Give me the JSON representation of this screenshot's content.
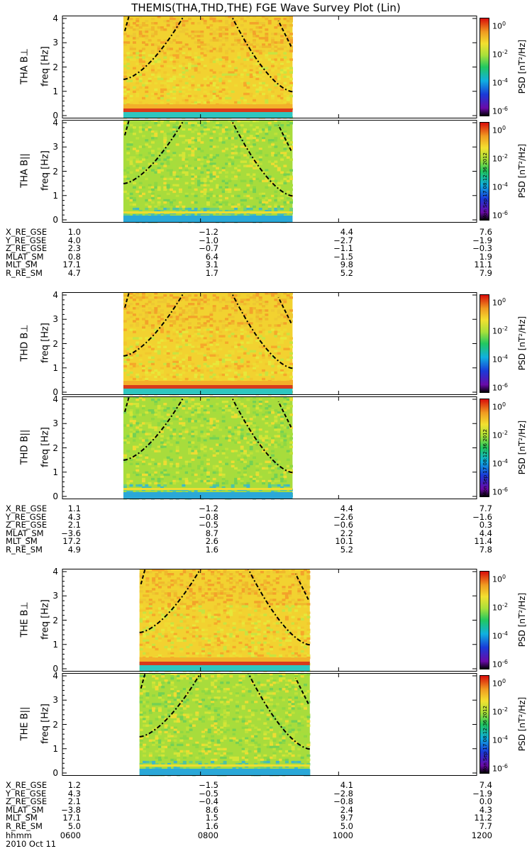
{
  "title": "THEMIS(THA,THD,THE) FGE Wave Survey Plot (Lin)",
  "freq_label": "freq [Hz]",
  "freq_ticks": [
    "0",
    "1",
    "2",
    "3",
    "4"
  ],
  "cb_label": "PSD [nT²/Hz]",
  "cb_ticks": [
    {
      "base": "10",
      "exp": "0"
    },
    {
      "base": "10",
      "exp": "-2"
    },
    {
      "base": "10",
      "exp": "-4"
    },
    {
      "base": "10",
      "exp": "-6"
    }
  ],
  "stamp": "Mon Sep 17 08:12:36 2012",
  "colors": {
    "line": "#000000",
    "axis": "#000000"
  },
  "x_ticks": [
    "0600",
    "0800",
    "1000",
    "1200"
  ],
  "date_rows": [
    {
      "label": "hhmm",
      "values": [
        "0600",
        "0800",
        "1000",
        "1200"
      ]
    },
    {
      "label": "2010 Oct 11",
      "values": [
        "",
        "",
        "",
        ""
      ]
    }
  ],
  "chart_data": [
    {
      "type": "heatmap",
      "probe": "THA",
      "panels": [
        {
          "label": "THA B⊥",
          "component": "perp"
        },
        {
          "label": "THA B||",
          "component": "para"
        }
      ],
      "x_range": [
        "0600",
        "1200"
      ],
      "data_coverage": [
        "0653",
        "0920"
      ],
      "ylim": [
        0,
        4
      ],
      "zlim_log10": [
        -6,
        1
      ],
      "ephemeris": [
        {
          "label": "X_RE_GSE",
          "values": [
            "1.0",
            "−1.2",
            "4.4",
            "7.6"
          ]
        },
        {
          "label": "Y_RE_GSE",
          "values": [
            "4.0",
            "−1.0",
            "−2.7",
            "−1.9"
          ]
        },
        {
          "label": "Z_RE_GSE",
          "values": [
            "2.3",
            "−0.7",
            "−1.1",
            "−0.3"
          ]
        },
        {
          "label": "MLAT_SM",
          "values": [
            "0.8",
            "6.4",
            "−1.5",
            "1.9"
          ]
        },
        {
          "label": "MLT_SM",
          "values": [
            "17.1",
            "3.1",
            "9.8",
            "11.1"
          ]
        },
        {
          "label": "R_RE_SM",
          "values": [
            "4.7",
            "1.7",
            "5.2",
            "7.9"
          ]
        }
      ]
    },
    {
      "type": "heatmap",
      "probe": "THD",
      "panels": [
        {
          "label": "THD B⊥",
          "component": "perp"
        },
        {
          "label": "THD B||",
          "component": "para"
        }
      ],
      "x_range": [
        "0600",
        "1200"
      ],
      "data_coverage": [
        "0653",
        "0920"
      ],
      "ylim": [
        0,
        4
      ],
      "zlim_log10": [
        -6,
        1
      ],
      "ephemeris": [
        {
          "label": "X_RE_GSE",
          "values": [
            "1.1",
            "−1.2",
            "4.4",
            "7.7"
          ]
        },
        {
          "label": "Y_RE_GSE",
          "values": [
            "4.3",
            "−0.8",
            "−2.6",
            "−1.6"
          ]
        },
        {
          "label": "Z_RE_GSE",
          "values": [
            "2.1",
            "−0.5",
            "−0.6",
            "0.3"
          ]
        },
        {
          "label": "MLAT_SM",
          "values": [
            "−3.6",
            "8.7",
            "2.2",
            "4.4"
          ]
        },
        {
          "label": "MLT_SM",
          "values": [
            "17.2",
            "2.6",
            "10.1",
            "11.4"
          ]
        },
        {
          "label": "R_RE_SM",
          "values": [
            "4.9",
            "1.6",
            "5.2",
            "7.8"
          ]
        }
      ]
    },
    {
      "type": "heatmap",
      "probe": "THE",
      "panels": [
        {
          "label": "THE B⊥",
          "component": "perp"
        },
        {
          "label": "THE B||",
          "component": "para"
        }
      ],
      "x_range": [
        "0600",
        "1200"
      ],
      "data_coverage": [
        "0707",
        "0935"
      ],
      "ylim": [
        0,
        4
      ],
      "zlim_log10": [
        -6,
        1
      ],
      "ephemeris": [
        {
          "label": "X_RE_GSE",
          "values": [
            "1.2",
            "−1.5",
            "4.1",
            "7.4"
          ]
        },
        {
          "label": "Y_RE_GSE",
          "values": [
            "4.3",
            "−0.5",
            "−2.8",
            "−1.9"
          ]
        },
        {
          "label": "Z_RE_GSE",
          "values": [
            "2.1",
            "−0.4",
            "−0.8",
            "0.0"
          ]
        },
        {
          "label": "MLAT_SM",
          "values": [
            "−3.8",
            "8.6",
            "2.4",
            "4.3"
          ]
        },
        {
          "label": "MLT_SM",
          "values": [
            "17.1",
            "1.5",
            "9.7",
            "11.2"
          ]
        },
        {
          "label": "R_RE_SM",
          "values": [
            "5.0",
            "1.6",
            "5.0",
            "7.7"
          ]
        }
      ]
    }
  ]
}
